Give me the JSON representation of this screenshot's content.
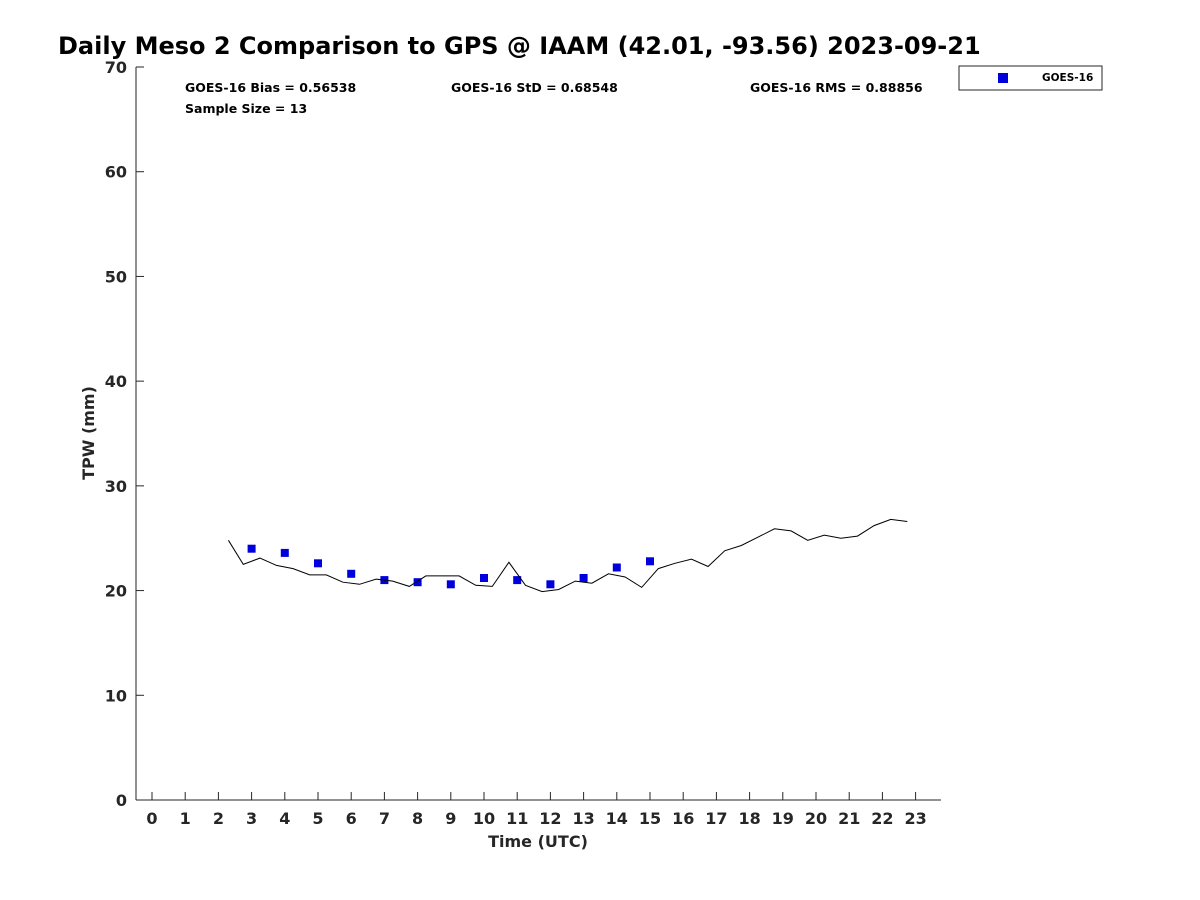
{
  "chart_data": {
    "type": "scatter",
    "title": "Daily Meso 2 Comparison to GPS @ IAAM (42.01, -93.56) 2023-09-21",
    "xlabel": "Time (UTC)",
    "ylabel": "TPW (mm)",
    "xlim": [
      -0.5,
      23.8
    ],
    "ylim": [
      0,
      70
    ],
    "x_ticks": [
      0,
      1,
      2,
      3,
      4,
      5,
      6,
      7,
      8,
      9,
      10,
      11,
      12,
      13,
      14,
      15,
      16,
      17,
      18,
      19,
      20,
      21,
      22,
      23
    ],
    "y_ticks": [
      0,
      10,
      20,
      30,
      40,
      50,
      60,
      70
    ],
    "grid": false,
    "legend_position": "outside-top-right",
    "stats": {
      "bias": "GOES-16 Bias = 0.56538",
      "std": "GOES-16 StD = 0.68548",
      "rms": "GOES-16 RMS = 0.88856",
      "sample_size": "Sample Size = 13"
    },
    "series": [
      {
        "name": "GOES-16",
        "kind": "scatter",
        "marker": "square",
        "color": "#0000dd",
        "x": [
          3,
          4,
          5,
          6,
          7,
          8,
          9,
          10,
          11,
          12,
          13,
          14,
          15
        ],
        "y": [
          24.0,
          23.6,
          22.6,
          21.6,
          21.0,
          20.8,
          20.6,
          21.2,
          21.0,
          20.6,
          21.2,
          22.2,
          22.8
        ]
      },
      {
        "kind": "line",
        "color": "#000000",
        "x": [
          2.3,
          2.75,
          3.25,
          3.75,
          4.25,
          4.75,
          5.25,
          5.75,
          6.25,
          6.75,
          7.25,
          7.75,
          8.25,
          8.75,
          9.25,
          9.75,
          10.25,
          10.75,
          11.25,
          11.75,
          12.25,
          12.75,
          13.25,
          13.75,
          14.25,
          14.75,
          15.25,
          15.75,
          16.25,
          16.75,
          17.25,
          17.75,
          18.25,
          18.75,
          19.25,
          19.75,
          20.25,
          20.75,
          21.25,
          21.75,
          22.25,
          22.75
        ],
        "y": [
          24.8,
          22.5,
          23.1,
          22.4,
          22.1,
          21.5,
          21.5,
          20.8,
          20.6,
          21.1,
          20.9,
          20.4,
          21.4,
          21.4,
          21.4,
          20.5,
          20.4,
          22.7,
          20.5,
          19.9,
          20.1,
          20.9,
          20.7,
          21.6,
          21.3,
          20.3,
          22.1,
          22.6,
          23.0,
          22.3,
          23.8,
          24.3,
          25.1,
          25.9,
          25.7,
          24.8,
          25.3,
          25.0,
          25.2,
          26.2,
          26.8,
          26.6
        ]
      }
    ]
  }
}
